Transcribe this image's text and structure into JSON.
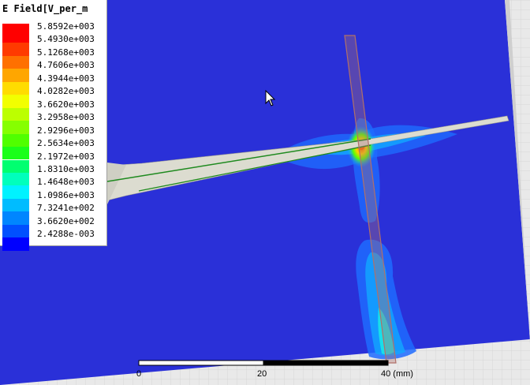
{
  "legend": {
    "title": "E Field[V_per_m",
    "items": [
      {
        "label": "5.8592e+003",
        "color": "#ff0000"
      },
      {
        "label": "5.4930e+003",
        "color": "#ff3a00"
      },
      {
        "label": "5.1268e+003",
        "color": "#ff7000"
      },
      {
        "label": "4.7606e+003",
        "color": "#ffa600"
      },
      {
        "label": "4.3944e+003",
        "color": "#ffdc00"
      },
      {
        "label": "4.0282e+003",
        "color": "#f2ff00"
      },
      {
        "label": "3.6620e+003",
        "color": "#bcff00"
      },
      {
        "label": "3.2958e+003",
        "color": "#86ff00"
      },
      {
        "label": "2.9296e+003",
        "color": "#50ff00"
      },
      {
        "label": "2.5634e+003",
        "color": "#1aff1a"
      },
      {
        "label": "2.1972e+003",
        "color": "#00ff70"
      },
      {
        "label": "1.8310e+003",
        "color": "#00ffbc"
      },
      {
        "label": "1.4648e+003",
        "color": "#00f2ff"
      },
      {
        "label": "1.0986e+003",
        "color": "#00bcff"
      },
      {
        "label": "7.3241e+002",
        "color": "#0086ff"
      },
      {
        "label": "3.6620e+002",
        "color": "#0050ff"
      },
      {
        "label": "2.4288e-003",
        "color": "#0000ff"
      }
    ]
  },
  "scale": {
    "labels": [
      "0",
      "20",
      "40 (mm)"
    ]
  },
  "colors": {
    "plane": "#2a30d8",
    "background": "#e9e9e9",
    "trace_fill": "#dcdcd0",
    "trace_line": "#1f8a1f",
    "stub": "#b0706a"
  }
}
